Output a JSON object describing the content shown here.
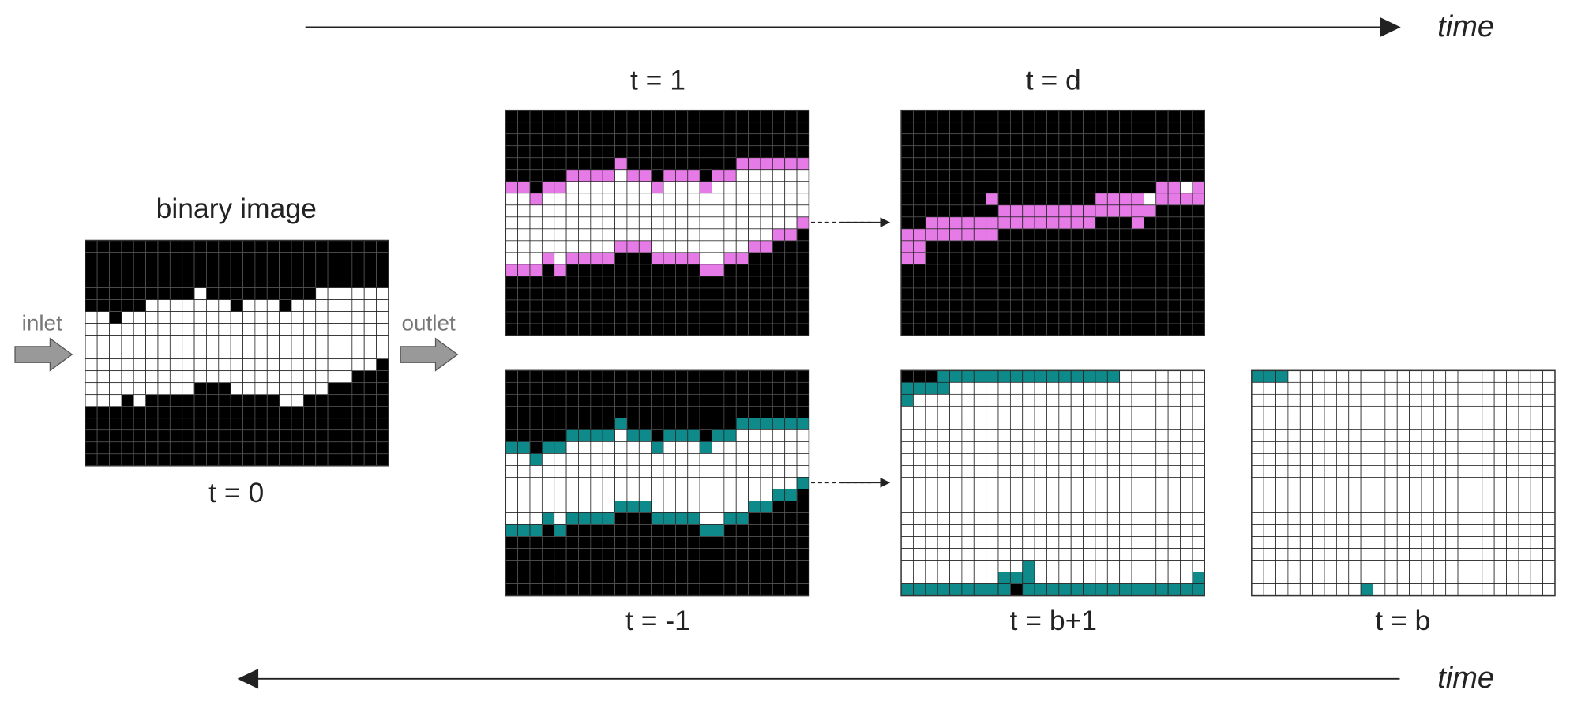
{
  "timeline": {
    "top_label": "time",
    "bottom_label": "time"
  },
  "flow": {
    "inlet": "inlet",
    "outlet": "outlet"
  },
  "panels": [
    {
      "title": "binary image",
      "label": "t = 0"
    },
    {
      "label": "t = 1"
    },
    {
      "label": "t = d"
    },
    {
      "label": "t = -1"
    },
    {
      "label": "t = b+1"
    },
    {
      "label": "t = b"
    }
  ]
}
